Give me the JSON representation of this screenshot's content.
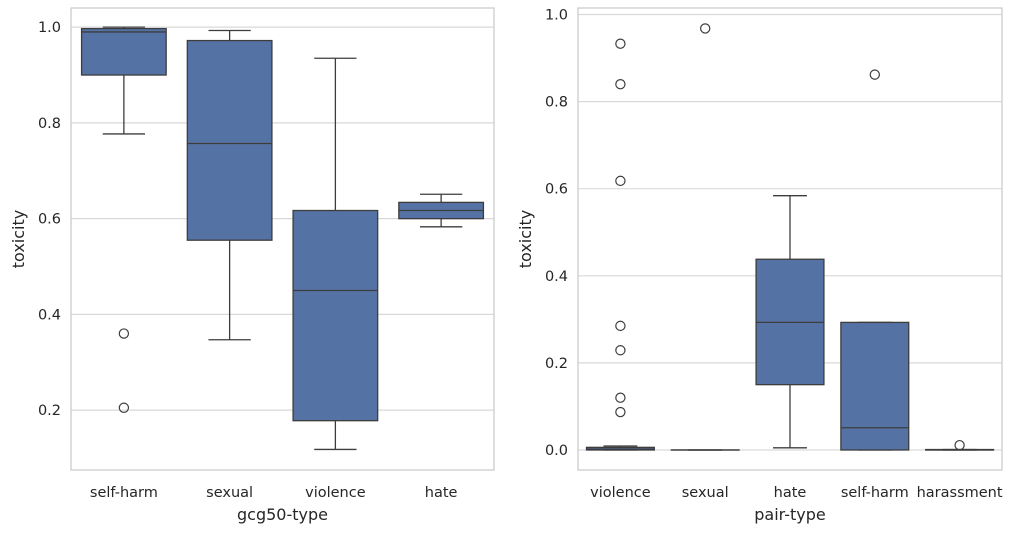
{
  "colors": {
    "box": "#5572a4",
    "edge": "#3d3d3d",
    "grid": "#d9d9d9",
    "frame": "#cccccc"
  },
  "chart_data": [
    {
      "type": "box",
      "title": "",
      "xlabel": "gcg50-type",
      "ylabel": "toxicity",
      "ylim": [
        0.075,
        1.04
      ],
      "yticks": [
        "0.2",
        "0.4",
        "0.6",
        "0.8",
        "1.0"
      ],
      "grid": true,
      "categories": [
        "self-harm",
        "sexual",
        "violence",
        "hate"
      ],
      "boxes": [
        {
          "q1": 0.9,
          "median": 0.99,
          "q3": 0.997,
          "whisker_low": 0.777,
          "whisker_high": 1.0,
          "outliers": [
            0.36,
            0.205
          ]
        },
        {
          "q1": 0.555,
          "median": 0.757,
          "q3": 0.972,
          "whisker_low": 0.347,
          "whisker_high": 0.993,
          "outliers": []
        },
        {
          "q1": 0.178,
          "median": 0.45,
          "q3": 0.617,
          "whisker_low": 0.118,
          "whisker_high": 0.935,
          "outliers": []
        },
        {
          "q1": 0.6,
          "median": 0.617,
          "q3": 0.634,
          "whisker_low": 0.583,
          "whisker_high": 0.651,
          "outliers": []
        }
      ]
    },
    {
      "type": "box",
      "title": "",
      "xlabel": "pair-type",
      "ylabel": "toxicity",
      "ylim": [
        -0.046,
        1.015
      ],
      "yticks": [
        "0.0",
        "0.2",
        "0.4",
        "0.6",
        "0.8",
        "1.0"
      ],
      "grid": true,
      "categories": [
        "violence",
        "sexual",
        "hate",
        "self-harm",
        "harassment"
      ],
      "boxes": [
        {
          "q1": 0.0,
          "median": 0.002,
          "q3": 0.006,
          "whisker_low": 0.0,
          "whisker_high": 0.009,
          "outliers": [
            0.933,
            0.84,
            0.618,
            0.285,
            0.229,
            0.12,
            0.087
          ]
        },
        {
          "q1": 0.0,
          "median": 0.0,
          "q3": 0.0,
          "whisker_low": 0.0,
          "whisker_high": 0.0,
          "outliers": [
            0.968
          ]
        },
        {
          "q1": 0.15,
          "median": 0.293,
          "q3": 0.438,
          "whisker_low": 0.005,
          "whisker_high": 0.584,
          "outliers": []
        },
        {
          "q1": 0.0,
          "median": 0.051,
          "q3": 0.293,
          "whisker_low": 0.0,
          "whisker_high": 0.293,
          "outliers": [
            0.862
          ]
        },
        {
          "q1": 0.0,
          "median": 0.0,
          "q3": 0.001,
          "whisker_low": 0.0,
          "whisker_high": 0.001,
          "outliers": [
            0.011
          ]
        }
      ]
    }
  ]
}
